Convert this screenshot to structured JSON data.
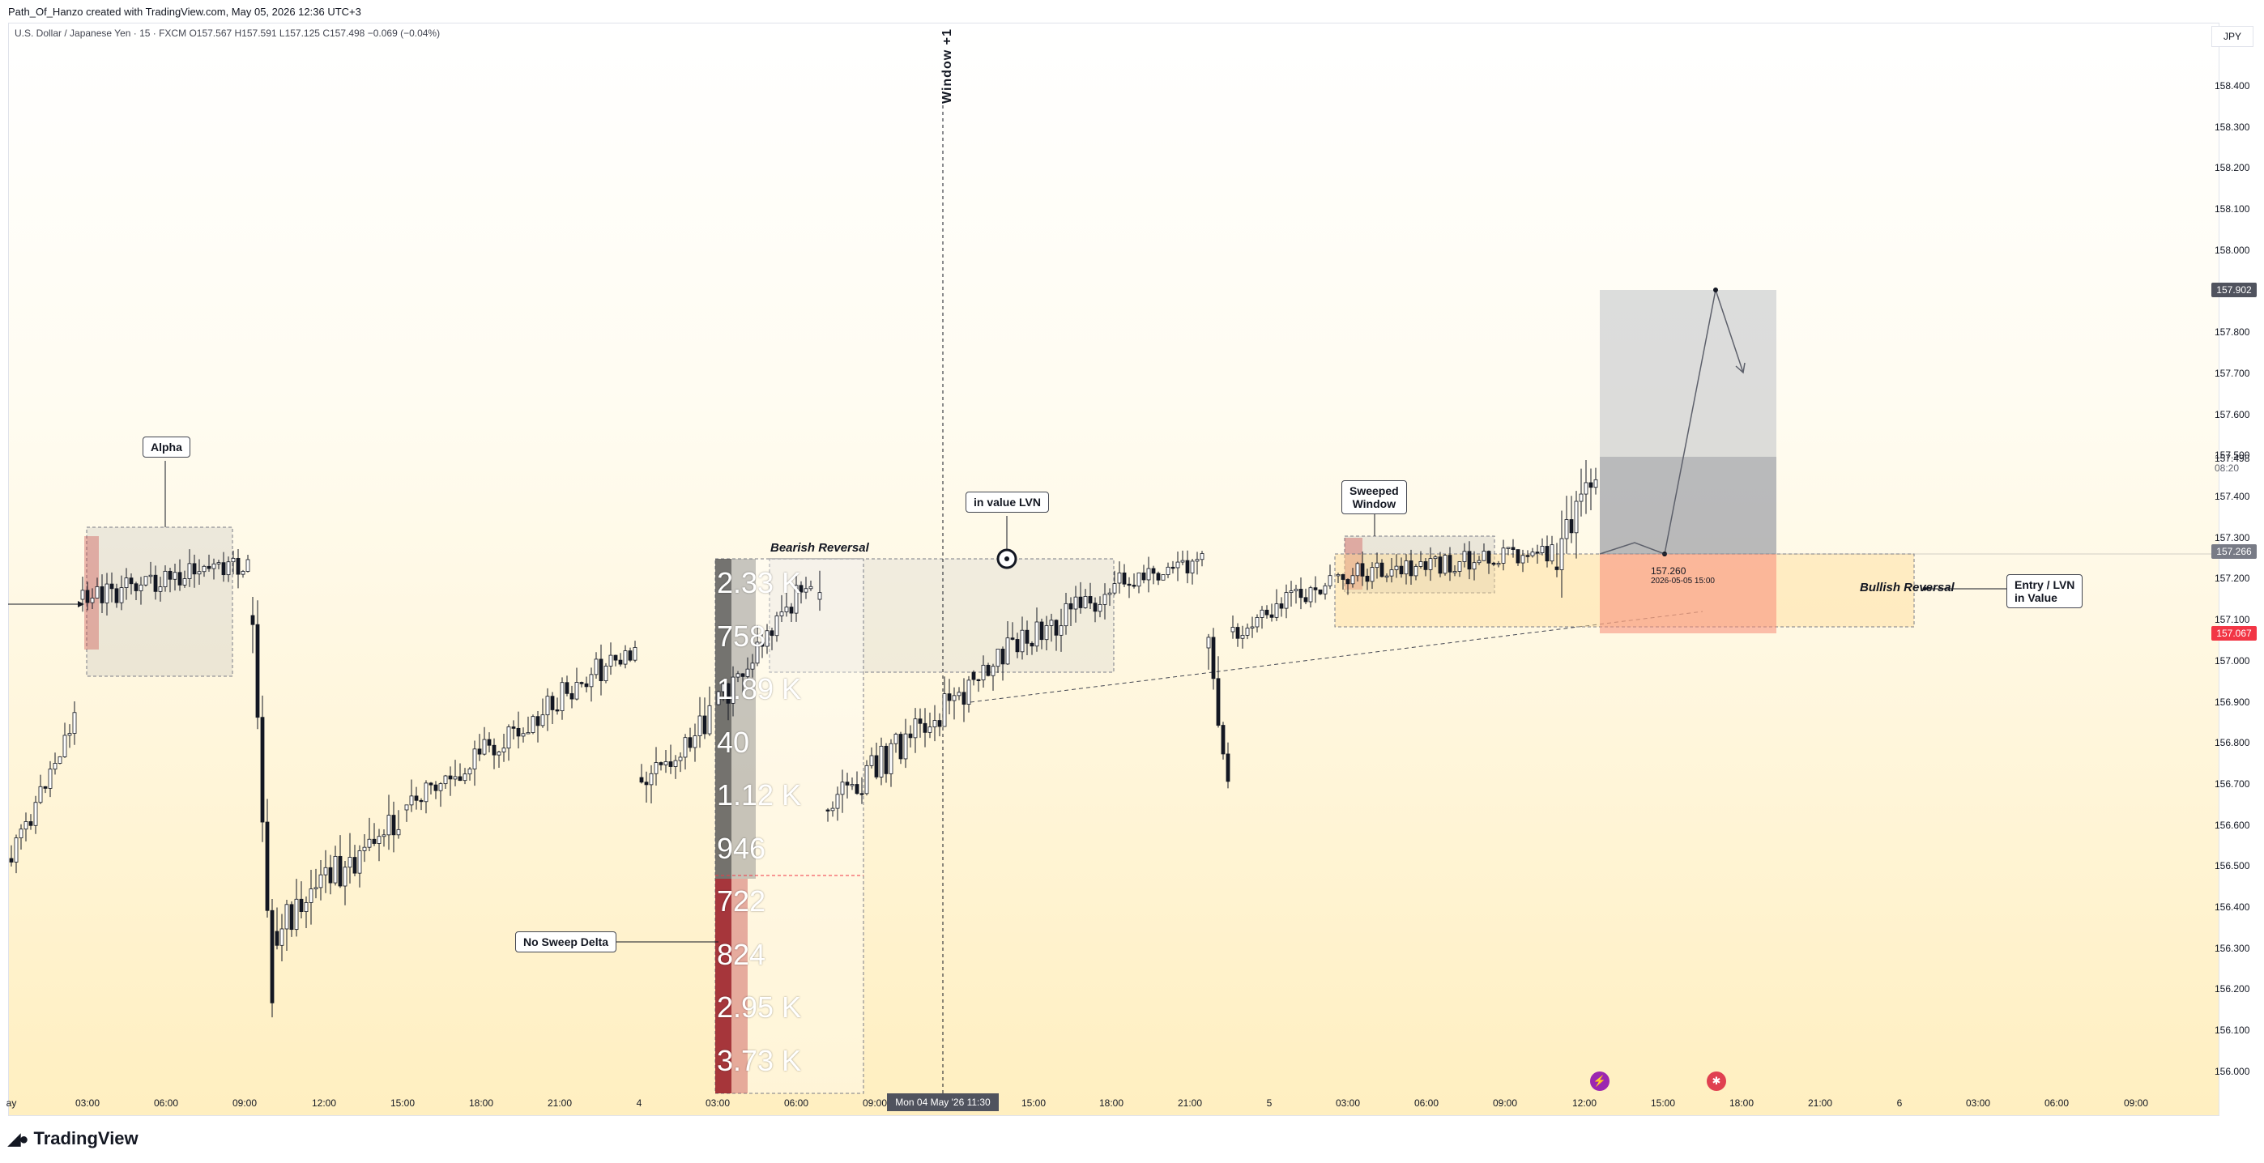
{
  "attribution": "Path_Of_Hanzo created with TradingView.com, May 05, 2026 12:36 UTC+3",
  "symbol": {
    "name": "U.S. Dollar / Japanese Yen · 15 · FXCM",
    "open": "O157.567",
    "high": "H157.591",
    "low": "L157.125",
    "close": "C157.498",
    "change": "−0.069 (−0.04%)"
  },
  "currency": "JPY",
  "price_axis": {
    "ticks": [
      "158.400",
      "158.300",
      "158.200",
      "158.100",
      "158.000",
      "157.900",
      "157.800",
      "157.700",
      "157.600",
      "157.500",
      "157.400",
      "157.300",
      "157.200",
      "157.100",
      "157.000",
      "156.900",
      "156.800",
      "156.700",
      "156.600",
      "156.500",
      "156.400",
      "156.300",
      "156.200",
      "156.100",
      "156.000"
    ],
    "labels": {
      "target": "157.902",
      "last": "157.498",
      "countdown": "08:20",
      "entry": "157.266",
      "stop": "157.067"
    }
  },
  "time_axis": [
    "ay",
    "03:00",
    "06:00",
    "09:00",
    "12:00",
    "15:00",
    "18:00",
    "21:00",
    "4",
    "03:00",
    "06:00",
    "09:00",
    "15:00",
    "18:00",
    "21:00",
    "5",
    "03:00",
    "06:00",
    "09:00",
    "12:00",
    "15:00",
    "18:00",
    "21:00",
    "6",
    "03:00",
    "06:00",
    "09:00"
  ],
  "crosshair_time": "Mon 04 May '26   11:30",
  "annotations": {
    "alpha": "Alpha",
    "bearish_reversal": "Bearish Reversal",
    "in_value_lvn": "in value LVN",
    "sweeped_window_1": "Sweeped",
    "sweeped_window_2": "Window",
    "bullish_reversal": "Bullish Reversal",
    "entry_lvn_1": "Entry / LVN",
    "entry_lvn_2": "in Value",
    "no_sweep_delta": "No Sweep Delta",
    "window_plus_one": "Window +1",
    "target_price": "157.260",
    "target_date": "2026-05-05 15:00"
  },
  "volume_profile": [
    "2.33 K",
    "758",
    "1.89 K",
    "40",
    "1.12 K",
    "946",
    "722",
    "824",
    "2.95 K",
    "3.73 K"
  ],
  "logo_text": "TradingView",
  "colors": {
    "up": "#ffffff",
    "down": "#131722",
    "stop_zone": "#f7a79b",
    "profit_zone": "#b2b5be",
    "entry_label": "#787b86",
    "stop_label": "#f23645",
    "target_label": "#50535e"
  }
}
